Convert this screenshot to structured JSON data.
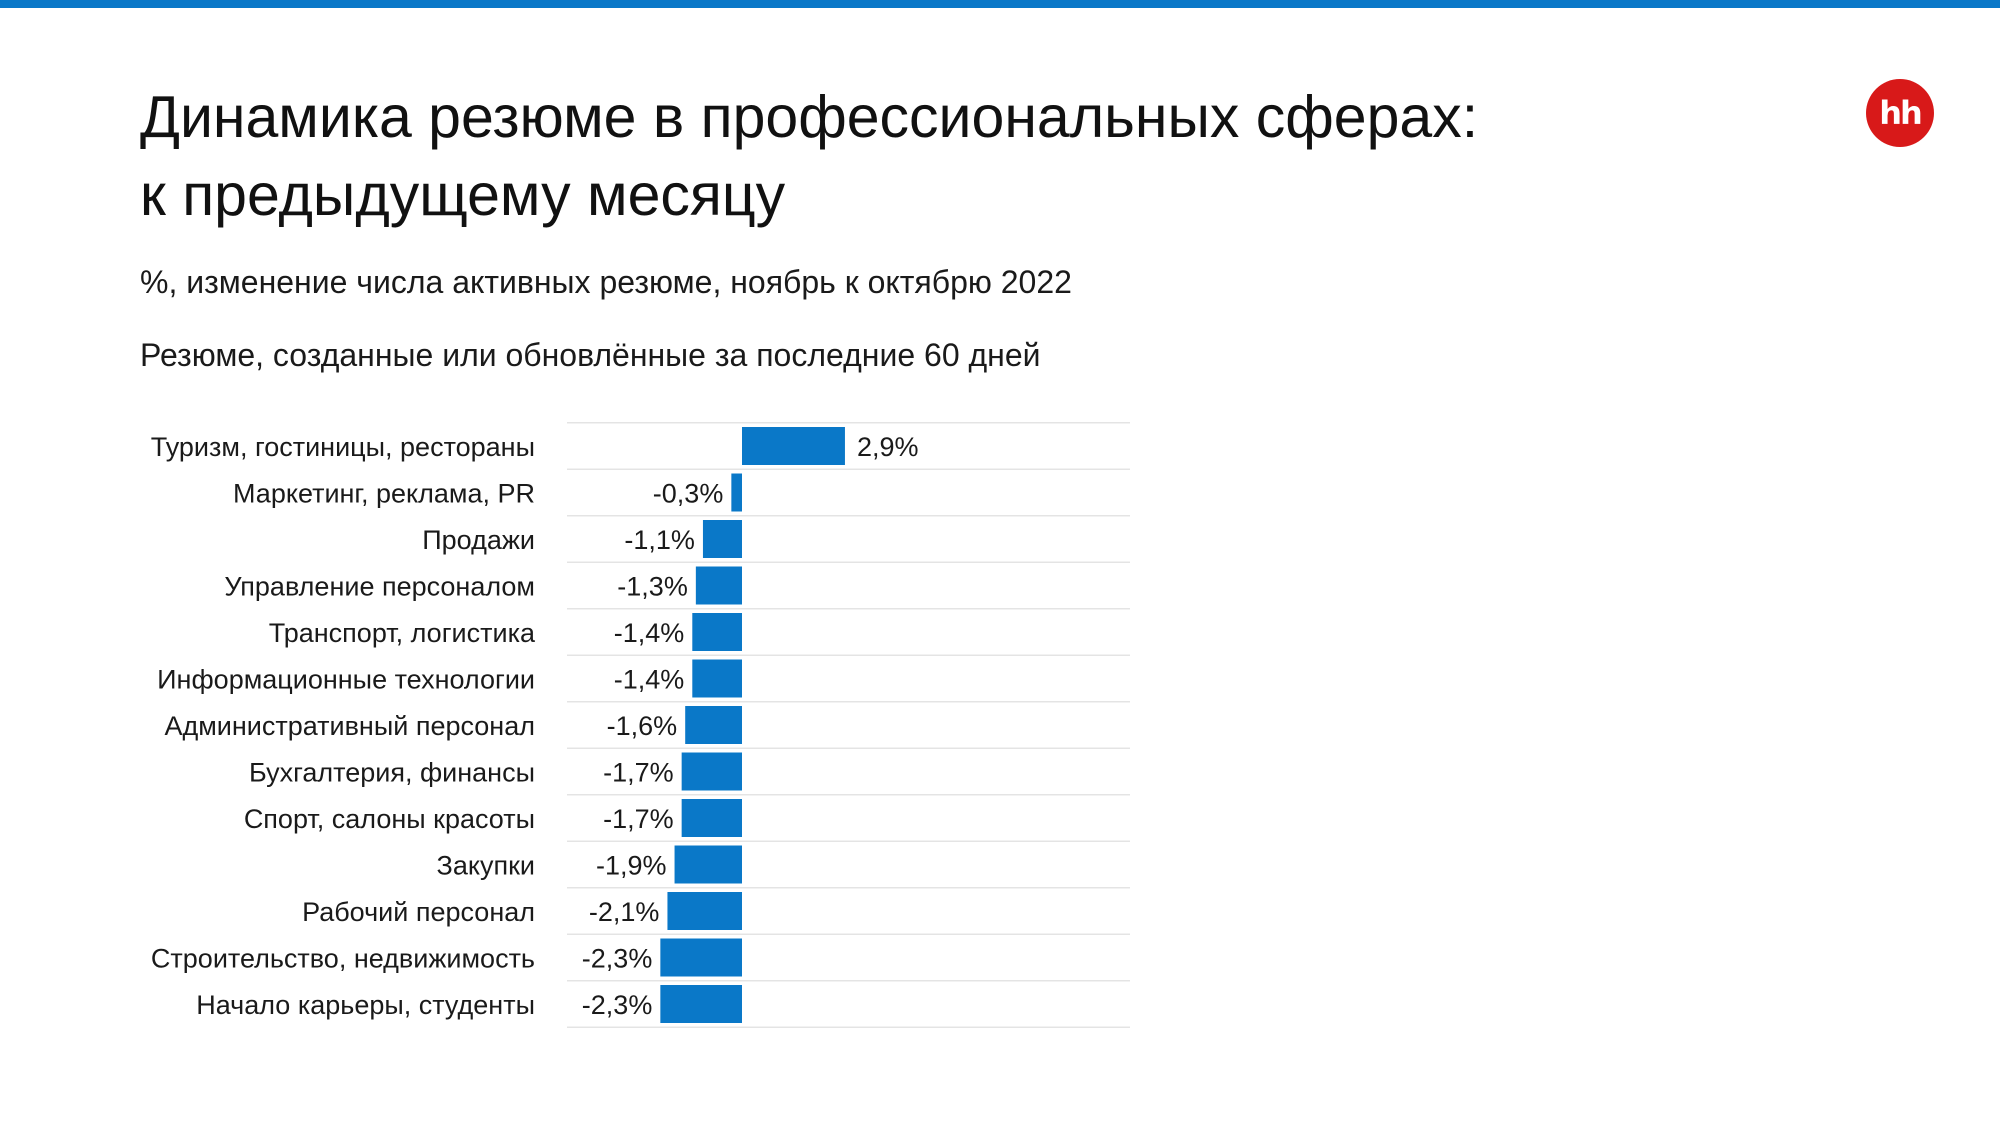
{
  "colors": {
    "accent": "#0a78c8",
    "brand": "#d81919",
    "grid": "#e4e4e4"
  },
  "header": {
    "title_line1": "Динамика резюме в профессиональных сферах:",
    "title_line2": "к предыдущему месяцу",
    "subtitle": "%, изменение числа активных резюме, ноябрь к октябрю 2022",
    "note": "Резюме, созданные или обновлённые за последние 60 дней"
  },
  "logo": {
    "text": "hh",
    "icon": "hh-logo-icon"
  },
  "chart_data": {
    "type": "bar",
    "orientation": "horizontal",
    "categories": [
      "Туризм, гостиницы, рестораны",
      "Маркетинг, реклама, PR",
      "Продажи",
      "Управление персоналом",
      "Транспорт, логистика",
      "Информационные технологии",
      "Административный персонал",
      "Бухгалтерия, финансы",
      "Спорт, салоны красоты",
      "Закупки",
      "Рабочий персонал",
      "Строительство, недвижимость",
      "Начало карьеры, студенты"
    ],
    "values": [
      2.9,
      -0.3,
      -1.1,
      -1.3,
      -1.4,
      -1.4,
      -1.6,
      -1.7,
      -1.7,
      -1.9,
      -2.1,
      -2.3,
      -2.3
    ],
    "labels": [
      "2,9%",
      "-0,3%",
      "-1,1%",
      "-1,3%",
      "-1,4%",
      "-1,4%",
      "-1,6%",
      "-1,7%",
      "-1,7%",
      "-1,9%",
      "-2,1%",
      "-2,3%",
      "-2,3%"
    ],
    "grid": true,
    "legend": "none"
  }
}
